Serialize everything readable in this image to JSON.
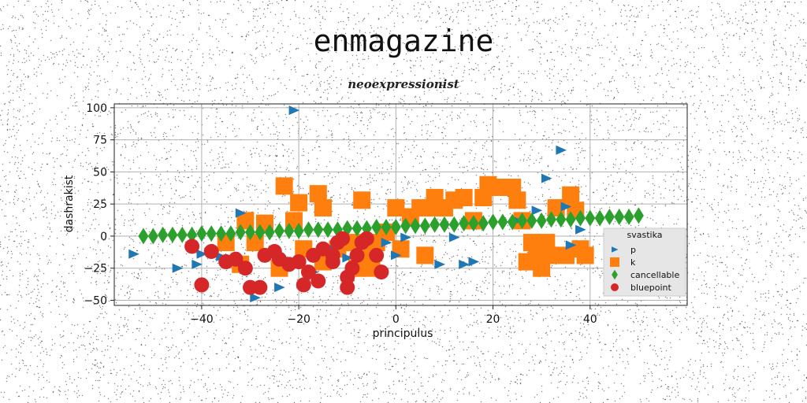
{
  "colors": {
    "p": "#1f77b4",
    "k": "#ff7f0e",
    "cancellable": "#2ca02c",
    "bluepoint": "#d62728"
  },
  "chart_data": {
    "type": "scatter",
    "title": "enmagazine",
    "subtitle": "neoexpressionist",
    "xlabel": "principulus",
    "ylabel": "dashrakist",
    "xlim": [
      -58,
      60
    ],
    "ylim": [
      -54,
      103
    ],
    "xticks": [
      -40,
      -20,
      0,
      20,
      40
    ],
    "yticks": [
      -50,
      -25,
      0,
      25,
      50,
      75,
      100
    ],
    "xtick_labels": [
      "−40",
      "−20",
      "0",
      "20",
      "40"
    ],
    "ytick_labels": [
      "−50",
      "−25",
      "0",
      "25",
      "50",
      "75",
      "100"
    ],
    "grid": true,
    "legend": {
      "title": "svastika",
      "placement": "lower-right"
    },
    "series": [
      {
        "name": "p",
        "marker": "triangle-right",
        "points": [
          [
            -54,
            -14
          ],
          [
            -45,
            -25
          ],
          [
            -40,
            -14
          ],
          [
            -41,
            -22
          ],
          [
            -38,
            -13
          ],
          [
            -36,
            -16
          ],
          [
            -32,
            18
          ],
          [
            -29,
            -48
          ],
          [
            -24,
            -40
          ],
          [
            -21,
            98
          ],
          [
            -17,
            -28
          ],
          [
            -13,
            -10
          ],
          [
            -10,
            -17
          ],
          [
            -2,
            -5
          ],
          [
            0,
            -15
          ],
          [
            2,
            -1
          ],
          [
            9,
            -22
          ],
          [
            12,
            -1
          ],
          [
            14,
            -22
          ],
          [
            16,
            -20
          ],
          [
            25,
            12
          ],
          [
            29,
            20
          ],
          [
            31,
            45
          ],
          [
            34,
            67
          ],
          [
            35,
            23
          ],
          [
            36,
            -7
          ],
          [
            38,
            5
          ],
          [
            46,
            -13
          ]
        ]
      },
      {
        "name": "k",
        "marker": "square",
        "points": [
          [
            -23,
            39
          ],
          [
            -20,
            26
          ],
          [
            -16,
            33
          ],
          [
            -15,
            22
          ],
          [
            -21,
            12
          ],
          [
            -31,
            12
          ],
          [
            -27,
            10
          ],
          [
            -35,
            -5
          ],
          [
            -32,
            -22
          ],
          [
            -29,
            -5
          ],
          [
            -24,
            -25
          ],
          [
            -19,
            -10
          ],
          [
            -15,
            -20
          ],
          [
            -12,
            -10
          ],
          [
            -9,
            -5
          ],
          [
            -5,
            -15
          ],
          [
            -7,
            28
          ],
          [
            -2,
            3
          ],
          [
            -4,
            -5
          ],
          [
            -8,
            -25
          ],
          [
            -5,
            -25
          ],
          [
            0,
            22
          ],
          [
            1,
            -10
          ],
          [
            3,
            15
          ],
          [
            5,
            22
          ],
          [
            6,
            -15
          ],
          [
            8,
            22
          ],
          [
            8,
            30
          ],
          [
            10,
            22
          ],
          [
            12,
            28
          ],
          [
            14,
            30
          ],
          [
            16,
            12
          ],
          [
            18,
            30
          ],
          [
            19,
            40
          ],
          [
            21,
            38
          ],
          [
            24,
            38
          ],
          [
            25,
            28
          ],
          [
            26,
            12
          ],
          [
            27,
            -20
          ],
          [
            28,
            -5
          ],
          [
            29,
            -15
          ],
          [
            30,
            -25
          ],
          [
            31,
            -5
          ],
          [
            32,
            -15
          ],
          [
            33,
            22
          ],
          [
            35,
            -15
          ],
          [
            36,
            32
          ],
          [
            37,
            20
          ],
          [
            38,
            -10
          ],
          [
            39,
            -15
          ]
        ]
      },
      {
        "name": "cancellable",
        "marker": "diamond",
        "points": [
          [
            -52,
            0
          ],
          [
            -50,
            0
          ],
          [
            -48,
            1
          ],
          [
            -46,
            1
          ],
          [
            -44,
            1
          ],
          [
            -42,
            1
          ],
          [
            -40,
            2
          ],
          [
            -38,
            2
          ],
          [
            -36,
            2
          ],
          [
            -34,
            2
          ],
          [
            -32,
            3
          ],
          [
            -30,
            3
          ],
          [
            -28,
            3
          ],
          [
            -26,
            3
          ],
          [
            -24,
            4
          ],
          [
            -22,
            4
          ],
          [
            -20,
            4
          ],
          [
            -18,
            5
          ],
          [
            -16,
            5
          ],
          [
            -14,
            5
          ],
          [
            -12,
            5
          ],
          [
            -10,
            6
          ],
          [
            -8,
            6
          ],
          [
            -6,
            6
          ],
          [
            -4,
            7
          ],
          [
            -2,
            7
          ],
          [
            0,
            7
          ],
          [
            2,
            8
          ],
          [
            4,
            8
          ],
          [
            6,
            8
          ],
          [
            8,
            9
          ],
          [
            10,
            9
          ],
          [
            12,
            9
          ],
          [
            14,
            10
          ],
          [
            16,
            10
          ],
          [
            18,
            10
          ],
          [
            20,
            11
          ],
          [
            22,
            11
          ],
          [
            24,
            11
          ],
          [
            26,
            12
          ],
          [
            28,
            12
          ],
          [
            30,
            12
          ],
          [
            32,
            13
          ],
          [
            34,
            13
          ],
          [
            36,
            13
          ],
          [
            38,
            14
          ],
          [
            40,
            14
          ],
          [
            42,
            14
          ],
          [
            44,
            15
          ],
          [
            46,
            15
          ],
          [
            48,
            15
          ],
          [
            50,
            16
          ]
        ]
      },
      {
        "name": "bluepoint",
        "marker": "circle",
        "points": [
          [
            -42,
            -8
          ],
          [
            -40,
            -38
          ],
          [
            -38,
            -12
          ],
          [
            -35,
            -20
          ],
          [
            -33,
            -18
          ],
          [
            -31,
            -25
          ],
          [
            -30,
            -40
          ],
          [
            -28,
            -40
          ],
          [
            -27,
            -15
          ],
          [
            -25,
            -12
          ],
          [
            -24,
            -18
          ],
          [
            -22,
            -22
          ],
          [
            -20,
            -20
          ],
          [
            -19,
            -38
          ],
          [
            -18,
            -28
          ],
          [
            -17,
            -15
          ],
          [
            -16,
            -35
          ],
          [
            -15,
            -10
          ],
          [
            -13,
            -20
          ],
          [
            -12,
            -5
          ],
          [
            -11,
            -2
          ],
          [
            -10,
            -40
          ],
          [
            -10,
            -32
          ],
          [
            -9,
            -25
          ],
          [
            -8,
            -15
          ],
          [
            -7,
            -5
          ],
          [
            -6,
            -2
          ],
          [
            -4,
            -15
          ],
          [
            -3,
            -28
          ],
          [
            -13,
            -15
          ]
        ]
      }
    ]
  }
}
